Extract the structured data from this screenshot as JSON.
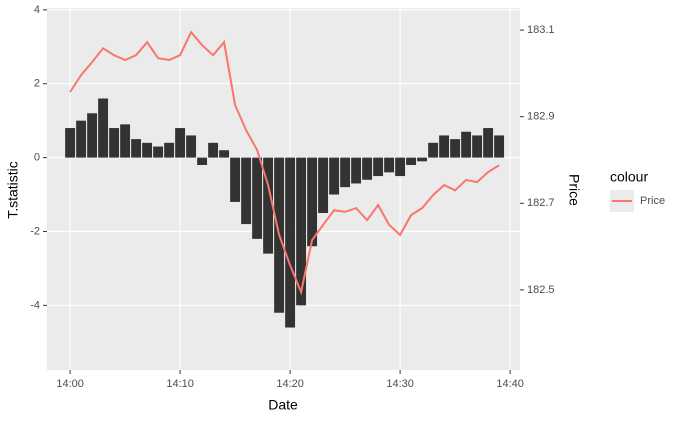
{
  "chart_data": {
    "type": "bar",
    "xlabel": "Date",
    "ylabel": "T.statistic",
    "y2label": "Price",
    "legend_title": "colour",
    "color": "#333333",
    "x": [
      0,
      1,
      2,
      3,
      4,
      5,
      6,
      7,
      8,
      9,
      10,
      11,
      12,
      13,
      14,
      15,
      16,
      17,
      18,
      19,
      20,
      21,
      22,
      23,
      24,
      25,
      26,
      27,
      28,
      29,
      30,
      31,
      32,
      33,
      34,
      35,
      36,
      37,
      38,
      39
    ],
    "values": [
      0.8,
      1.0,
      1.2,
      1.6,
      0.8,
      0.9,
      0.5,
      0.4,
      0.3,
      0.4,
      0.8,
      0.6,
      -0.2,
      0.4,
      0.2,
      -1.2,
      -1.8,
      -2.2,
      -2.6,
      -4.2,
      -4.6,
      -4.0,
      -2.4,
      -1.5,
      -1.0,
      -0.8,
      -0.7,
      -0.6,
      -0.5,
      -0.4,
      -0.5,
      -0.2,
      -0.1,
      0.4,
      0.6,
      0.5,
      0.7,
      0.6,
      0.8,
      0.6
    ],
    "series": [
      {
        "name": "Price",
        "color": "#F8766D",
        "axis": "y2",
        "type": "line",
        "values": [
          182.957,
          182.996,
          183.026,
          183.058,
          183.042,
          183.031,
          183.042,
          183.072,
          183.035,
          183.031,
          183.042,
          183.095,
          183.065,
          183.042,
          183.072,
          182.927,
          182.869,
          182.823,
          182.742,
          182.627,
          182.557,
          182.495,
          182.615,
          182.65,
          182.684,
          182.68,
          182.689,
          182.661,
          182.696,
          182.65,
          182.627,
          182.673,
          182.689,
          182.719,
          182.742,
          182.73,
          182.754,
          182.749,
          182.772,
          182.788
        ]
      }
    ],
    "xlim": [
      -2.1,
      40.9
    ],
    "xticks": [
      {
        "value": 0,
        "label": "14:00"
      },
      {
        "value": 10,
        "label": "14:10"
      },
      {
        "value": 20,
        "label": "14:20"
      },
      {
        "value": 30,
        "label": "14:30"
      },
      {
        "value": 40,
        "label": "14:40"
      }
    ],
    "ylim": [
      -5.75,
      4.05
    ],
    "yticks": [
      -4,
      -2,
      0,
      2,
      4
    ],
    "y2lim": [
      182.315,
      183.151
    ],
    "y2ticks": [
      182.5,
      182.7,
      182.9,
      183.1
    ],
    "grid": true
  }
}
